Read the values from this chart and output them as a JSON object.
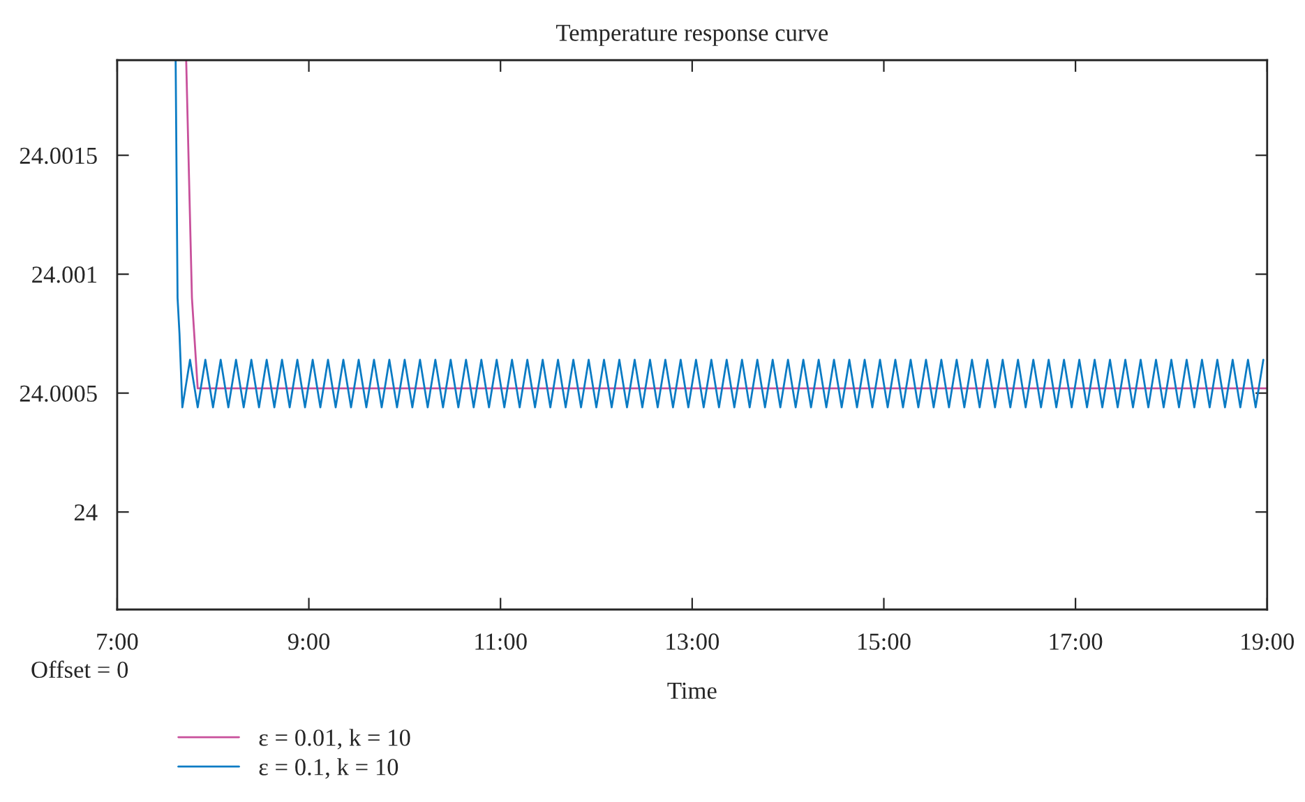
{
  "chart_data": {
    "type": "line",
    "title": "Temperature response curve",
    "xlabel": "Time",
    "annotations": [
      "Offset = 0"
    ],
    "xlim": [
      7,
      19
    ],
    "xticks": [
      {
        "value": 7,
        "label": "7:00"
      },
      {
        "value": 9,
        "label": "9:00"
      },
      {
        "value": 11,
        "label": "11:00"
      },
      {
        "value": 13,
        "label": "13:00"
      },
      {
        "value": 15,
        "label": "15:00"
      },
      {
        "value": 17,
        "label": "17:00"
      },
      {
        "value": 19,
        "label": "19:00"
      }
    ],
    "ylim": [
      23.99959,
      24.0019
    ],
    "yticks": [
      24,
      24.0005,
      24.001,
      24.0015
    ],
    "grid": false,
    "legend": "bottom left",
    "marker": "none",
    "line_style": "solid",
    "series": [
      {
        "name": "ε = 0.01, k = 10",
        "color": "#c8509b",
        "x": [
          7.72,
          7.78,
          7.84,
          19.0
        ],
        "values": [
          24.0019,
          24.0009,
          24.00052,
          24.00052
        ]
      },
      {
        "name": "ε = 0.1, k = 10",
        "color": "#0a7bc4",
        "x": [
          7.61,
          7.63,
          7.65,
          7.68,
          7.76,
          7.84,
          7.92,
          8.0,
          8.08,
          8.16,
          8.24,
          8.32,
          8.4,
          8.48,
          8.56,
          8.64,
          8.72,
          8.8,
          8.88,
          8.96,
          9.04,
          9.12,
          9.2,
          9.28,
          9.36,
          9.44,
          9.52,
          9.6,
          9.68,
          9.76,
          9.84,
          9.92,
          10.0,
          10.08,
          10.16,
          10.24,
          10.32,
          10.4,
          10.48,
          10.56,
          10.64,
          10.72,
          10.8,
          10.88,
          10.96,
          11.04,
          11.12,
          11.2,
          11.28,
          11.36,
          11.44,
          11.52,
          11.6,
          11.68,
          11.76,
          11.84,
          11.92,
          12.0,
          12.08,
          12.16,
          12.24,
          12.32,
          12.4,
          12.48,
          12.56,
          12.64,
          12.72,
          12.8,
          12.88,
          12.96,
          13.04,
          13.12,
          13.2,
          13.28,
          13.36,
          13.44,
          13.52,
          13.6,
          13.68,
          13.76,
          13.84,
          13.92,
          14.0,
          14.08,
          14.16,
          14.24,
          14.32,
          14.4,
          14.48,
          14.56,
          14.64,
          14.72,
          14.8,
          14.88,
          14.96,
          15.04,
          15.12,
          15.2,
          15.28,
          15.36,
          15.44,
          15.52,
          15.6,
          15.68,
          15.76,
          15.84,
          15.92,
          16.0,
          16.08,
          16.16,
          16.24,
          16.32,
          16.4,
          16.48,
          16.56,
          16.64,
          16.72,
          16.8,
          16.88,
          16.96,
          17.04,
          17.12,
          17.2,
          17.28,
          17.36,
          17.44,
          17.52,
          17.6,
          17.68,
          17.76,
          17.84,
          17.92,
          18.0,
          18.08,
          18.16,
          18.24,
          18.32,
          18.4,
          18.48,
          18.56,
          18.64,
          18.72,
          18.8,
          18.88,
          18.96
        ],
        "values": [
          24.0019,
          24.0009,
          24.00075,
          24.00044,
          24.00064,
          24.00044,
          24.00064,
          24.00044,
          24.00064,
          24.00044,
          24.00064,
          24.00044,
          24.00064,
          24.00044,
          24.00064,
          24.00044,
          24.00064,
          24.00044,
          24.00064,
          24.00044,
          24.00064,
          24.00044,
          24.00064,
          24.00044,
          24.00064,
          24.00044,
          24.00064,
          24.00044,
          24.00064,
          24.00044,
          24.00064,
          24.00044,
          24.00064,
          24.00044,
          24.00064,
          24.00044,
          24.00064,
          24.00044,
          24.00064,
          24.00044,
          24.00064,
          24.00044,
          24.00064,
          24.00044,
          24.00064,
          24.00044,
          24.00064,
          24.00044,
          24.00064,
          24.00044,
          24.00064,
          24.00044,
          24.00064,
          24.00044,
          24.00064,
          24.00044,
          24.00064,
          24.00044,
          24.00064,
          24.00044,
          24.00064,
          24.00044,
          24.00064,
          24.00044,
          24.00064,
          24.00044,
          24.00064,
          24.00044,
          24.00064,
          24.00044,
          24.00064,
          24.00044,
          24.00064,
          24.00044,
          24.00064,
          24.00044,
          24.00064,
          24.00044,
          24.00064,
          24.00044,
          24.00064,
          24.00044,
          24.00064,
          24.00044,
          24.00064,
          24.00044,
          24.00064,
          24.00044,
          24.00064,
          24.00044,
          24.00064,
          24.00044,
          24.00064,
          24.00044,
          24.00064,
          24.00044,
          24.00064,
          24.00044,
          24.00064,
          24.00044,
          24.00064,
          24.00044,
          24.00064,
          24.00044,
          24.00064,
          24.00044,
          24.00064,
          24.00044,
          24.00064,
          24.00044,
          24.00064,
          24.00044,
          24.00064,
          24.00044,
          24.00064,
          24.00044,
          24.00064,
          24.00044,
          24.00064,
          24.00044,
          24.00064,
          24.00044,
          24.00064,
          24.00044,
          24.00064,
          24.00044,
          24.00064,
          24.00044,
          24.00064,
          24.00044,
          24.00064,
          24.00044,
          24.00064,
          24.00044,
          24.00064,
          24.00044,
          24.00064,
          24.00044,
          24.00064,
          24.00044,
          24.00064,
          24.00044,
          24.00064,
          24.00044,
          24.00064
        ]
      }
    ]
  }
}
